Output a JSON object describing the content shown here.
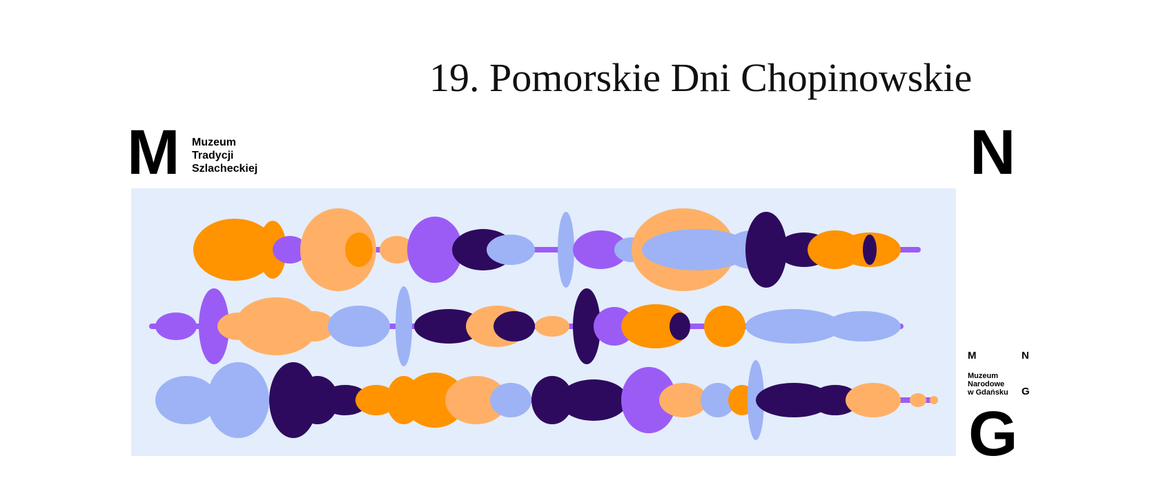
{
  "title": "19. Pomorskie Dni Chopinowskie",
  "logo_left": {
    "letter": "M",
    "lines": [
      "Muzeum",
      "Tradycji",
      "Szlacheckiej"
    ]
  },
  "logo_right": {
    "top_letter": "N",
    "small_m": "M",
    "small_n": "N",
    "lines": [
      "Muzeum",
      "Narodowe",
      "w Gdańsku"
    ],
    "small_g": "G",
    "bottom_letter": "G"
  }
}
